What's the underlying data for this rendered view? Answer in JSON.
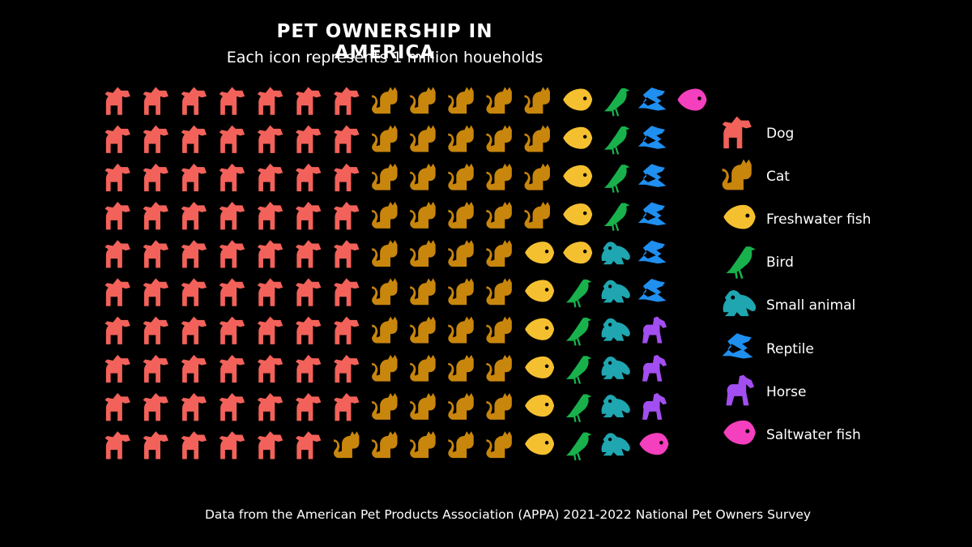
{
  "header": {
    "title": "PET OWNERSHIP IN AMERICA",
    "subtitle": "Each icon represents 1 million houeholds"
  },
  "footer": {
    "source": "Data from the American Pet Products Association (APPA) 2021-2022 National Pet Owners Survey"
  },
  "chart_data": {
    "type": "waffle",
    "unit": "1 million households per icon",
    "series": [
      {
        "name": "Dog",
        "values": [
          69
        ],
        "color": "#f2625a",
        "icon": "dog-icon"
      },
      {
        "name": "Cat",
        "values": [
          45
        ],
        "color": "#c8860d",
        "icon": "cat-icon"
      },
      {
        "name": "Freshwater fish",
        "values": [
          11
        ],
        "color": "#f5c030",
        "icon": "fish-icon"
      },
      {
        "name": "Bird",
        "values": [
          9
        ],
        "color": "#18b14c",
        "icon": "bird-icon"
      },
      {
        "name": "Small animal",
        "values": [
          6
        ],
        "color": "#1fa6b0",
        "icon": "frog-icon"
      },
      {
        "name": "Reptile",
        "values": [
          6
        ],
        "color": "#1f8ff0",
        "icon": "dragon-icon"
      },
      {
        "name": "Horse",
        "values": [
          3
        ],
        "color": "#a24ef0",
        "icon": "horse-icon"
      },
      {
        "name": "Saltwater fish",
        "values": [
          2
        ],
        "color": "#f43fbe",
        "icon": "fish-icon"
      }
    ],
    "grid_rows": 10,
    "legend_position": "right"
  }
}
